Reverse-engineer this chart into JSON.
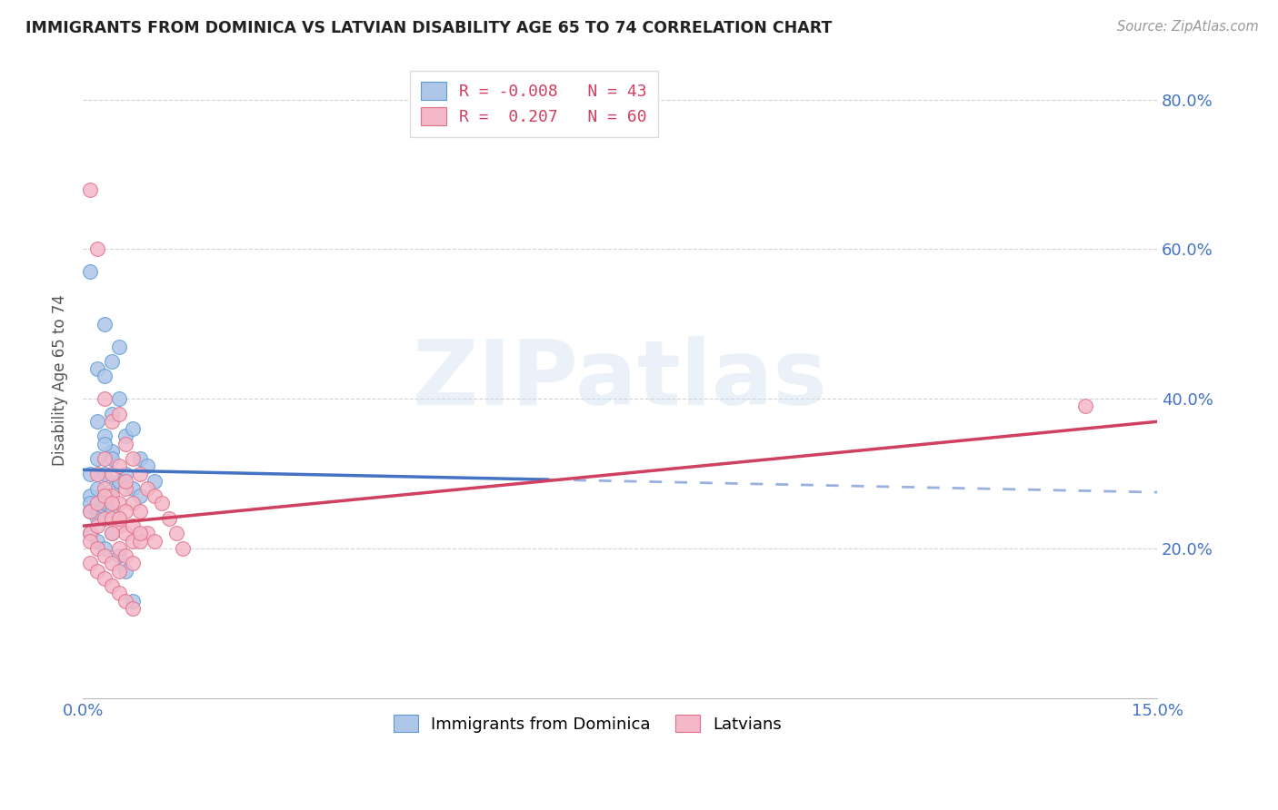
{
  "title": "IMMIGRANTS FROM DOMINICA VS LATVIAN DISABILITY AGE 65 TO 74 CORRELATION CHART",
  "source": "Source: ZipAtlas.com",
  "ylabel": "Disability Age 65 to 74",
  "xlim": [
    0.0,
    0.15
  ],
  "ylim": [
    0.0,
    0.85
  ],
  "xtick_vals": [
    0.0,
    0.05,
    0.1,
    0.15
  ],
  "xtick_labels": [
    "0.0%",
    "",
    "",
    "15.0%"
  ],
  "ytick_vals": [
    0.2,
    0.4,
    0.6,
    0.8
  ],
  "ytick_labels": [
    "20.0%",
    "40.0%",
    "60.0%",
    "80.0%"
  ],
  "R_blue": -0.008,
  "N_blue": 43,
  "R_pink": 0.207,
  "N_pink": 60,
  "legend_label_blue": "Immigrants from Dominica",
  "legend_label_pink": "Latvians",
  "blue_fill_color": "#aec6e8",
  "pink_fill_color": "#f4b8c8",
  "blue_edge_color": "#5b9bd5",
  "pink_edge_color": "#e0708a",
  "blue_line_color": "#4472c4",
  "pink_line_color": "#d04060",
  "watermark_text": "ZIPatlas",
  "blue_scatter_x": [
    0.001,
    0.001,
    0.001,
    0.001,
    0.001,
    0.002,
    0.002,
    0.002,
    0.002,
    0.002,
    0.003,
    0.003,
    0.003,
    0.003,
    0.003,
    0.004,
    0.004,
    0.004,
    0.004,
    0.005,
    0.005,
    0.005,
    0.006,
    0.006,
    0.007,
    0.007,
    0.008,
    0.008,
    0.009,
    0.01,
    0.001,
    0.002,
    0.003,
    0.004,
    0.005,
    0.006,
    0.007,
    0.002,
    0.003,
    0.004,
    0.005,
    0.003,
    0.004
  ],
  "blue_scatter_y": [
    0.57,
    0.3,
    0.27,
    0.26,
    0.25,
    0.44,
    0.37,
    0.32,
    0.28,
    0.25,
    0.5,
    0.43,
    0.35,
    0.3,
    0.27,
    0.45,
    0.38,
    0.33,
    0.28,
    0.47,
    0.4,
    0.29,
    0.35,
    0.3,
    0.36,
    0.28,
    0.32,
    0.27,
    0.31,
    0.29,
    0.22,
    0.21,
    0.2,
    0.22,
    0.19,
    0.17,
    0.13,
    0.24,
    0.26,
    0.25,
    0.29,
    0.34,
    0.32
  ],
  "pink_scatter_x": [
    0.001,
    0.001,
    0.001,
    0.001,
    0.002,
    0.002,
    0.002,
    0.002,
    0.002,
    0.003,
    0.003,
    0.003,
    0.003,
    0.004,
    0.004,
    0.004,
    0.004,
    0.005,
    0.005,
    0.005,
    0.005,
    0.006,
    0.006,
    0.006,
    0.007,
    0.007,
    0.007,
    0.008,
    0.008,
    0.009,
    0.009,
    0.01,
    0.01,
    0.011,
    0.012,
    0.013,
    0.014,
    0.001,
    0.002,
    0.003,
    0.004,
    0.005,
    0.006,
    0.007,
    0.003,
    0.004,
    0.005,
    0.006,
    0.007,
    0.008,
    0.003,
    0.004,
    0.005,
    0.004,
    0.005,
    0.006,
    0.007,
    0.008,
    0.14,
    0.006
  ],
  "pink_scatter_y": [
    0.68,
    0.25,
    0.22,
    0.21,
    0.6,
    0.3,
    0.26,
    0.23,
    0.2,
    0.4,
    0.32,
    0.28,
    0.24,
    0.37,
    0.3,
    0.27,
    0.24,
    0.38,
    0.31,
    0.26,
    0.23,
    0.34,
    0.28,
    0.22,
    0.32,
    0.26,
    0.21,
    0.3,
    0.25,
    0.28,
    0.22,
    0.27,
    0.21,
    0.26,
    0.24,
    0.22,
    0.2,
    0.18,
    0.17,
    0.16,
    0.15,
    0.14,
    0.13,
    0.12,
    0.19,
    0.18,
    0.17,
    0.25,
    0.23,
    0.21,
    0.27,
    0.26,
    0.24,
    0.22,
    0.2,
    0.19,
    0.18,
    0.22,
    0.39,
    0.29
  ]
}
